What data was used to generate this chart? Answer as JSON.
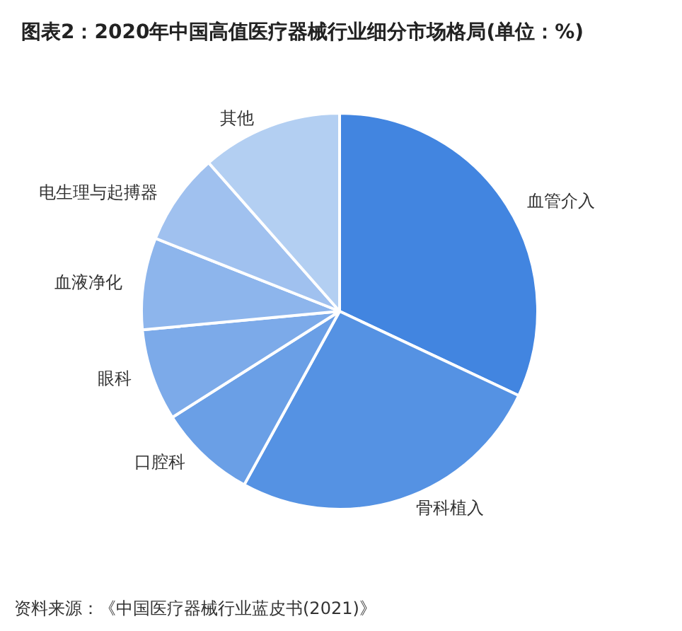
{
  "chart_data": {
    "type": "pie",
    "title": "图表2：2020年中国高值医疗器械行业细分市场格局(单位：%)",
    "categories": [
      "血管介入",
      "骨科植入",
      "口腔科",
      "眼科",
      "血液净化",
      "电生理与起搏器",
      "其他"
    ],
    "values": [
      32,
      26,
      8,
      7.5,
      7.5,
      7.5,
      11.5
    ],
    "colors": [
      "#4285e0",
      "#5592e3",
      "#6a9fe6",
      "#7caae9",
      "#8db5ec",
      "#a0c1ef",
      "#b3cff2"
    ],
    "annotations": [
      "资料来源：《中国医疗器械行业蓝皮书(2021)》"
    ]
  }
}
